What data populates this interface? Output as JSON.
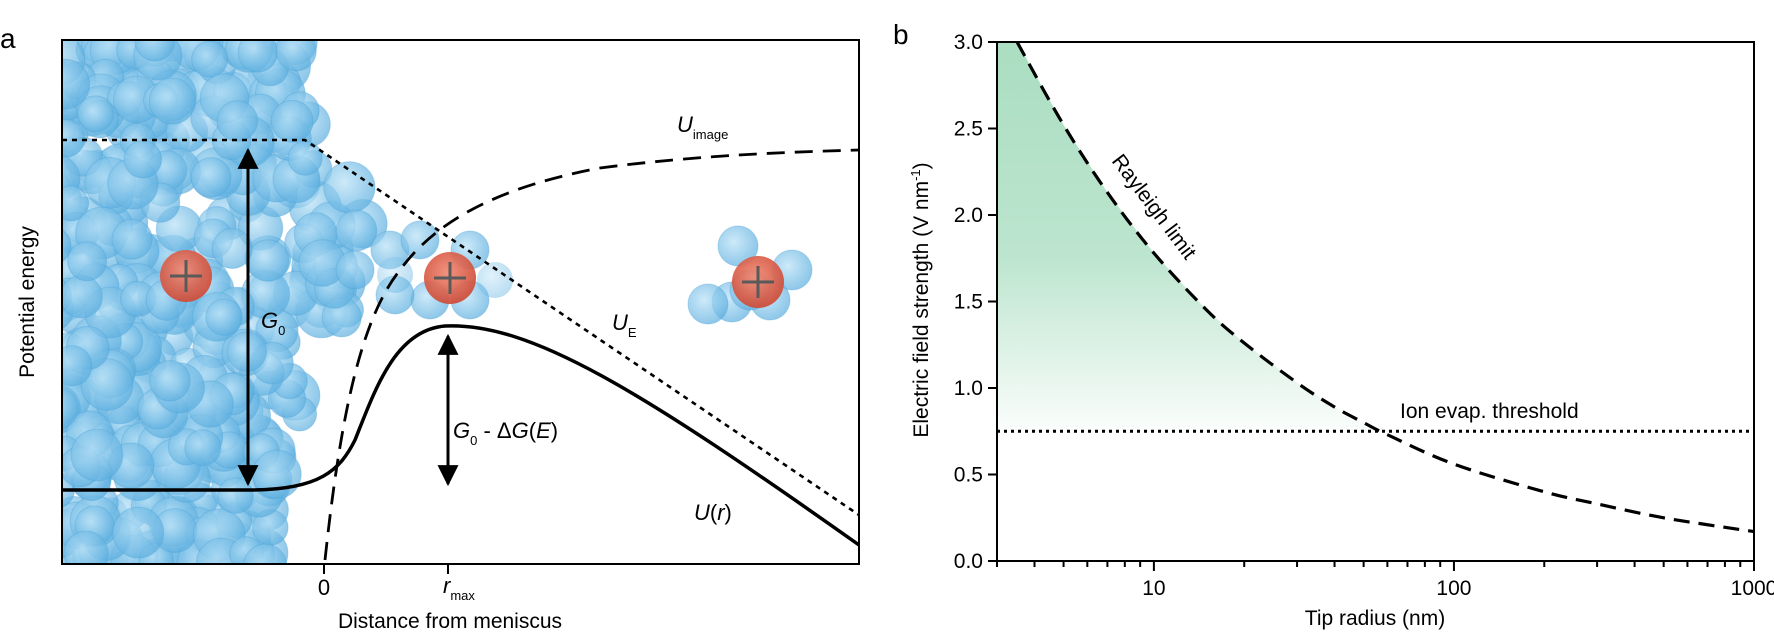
{
  "panel_a": {
    "label": "a",
    "ylabel": "Potential energy",
    "xlabel": "Distance from meniscus",
    "x_tick_0": "0",
    "r_max": {
      "main": "r",
      "sub": "max"
    },
    "u_image": {
      "main": "U",
      "sub": "image"
    },
    "u_e": {
      "main": "U",
      "sub": "E"
    },
    "g0": {
      "main": "G",
      "sub": "0"
    },
    "g0_minus": {
      "g": "G",
      "sub": "0",
      "rest": " - Δ",
      "g2": "G",
      "paren_open": "(",
      "e": "E",
      "paren_close": ")"
    },
    "u_r": {
      "u": "U",
      "open": "(",
      "r": "r",
      "close": ")"
    },
    "solvent_color": "#8ccbef",
    "ion_color": "#e0604a"
  },
  "panel_b": {
    "label": "b",
    "threshold_label": "Ion evap. threshold",
    "rayleigh_label": "Rayleigh limit",
    "ylabel_main": "Electric field strength (V nm",
    "ylabel_sup": "-1",
    "ylabel_close": ")",
    "shade_color": "#a6dcbe"
  },
  "chart_data": {
    "type": "line",
    "xlabel": "Tip radius (nm)",
    "ylabel": "Electric field strength (V nm-1)",
    "xscale": "log",
    "xlim": [
      3,
      1000
    ],
    "ylim": [
      0.0,
      3.0
    ],
    "x_ticks": [
      10,
      100,
      1000
    ],
    "x_tick_labels": [
      "10",
      "100",
      "1000"
    ],
    "y_ticks": [
      0.0,
      0.5,
      1.0,
      1.5,
      2.0,
      2.5,
      3.0
    ],
    "y_tick_labels": [
      "0.0",
      "0.5",
      "1.0",
      "1.5",
      "2.0",
      "2.5",
      "3.0"
    ],
    "grid": false,
    "series": [
      {
        "name": "Rayleigh limit",
        "style": "dashed",
        "x": [
          3.5,
          5,
          7,
          10,
          15,
          20,
          30,
          40,
          50,
          60,
          100,
          200,
          300,
          500,
          1000
        ],
        "y": [
          3.0,
          2.52,
          2.13,
          1.78,
          1.45,
          1.26,
          1.03,
          0.89,
          0.8,
          0.73,
          0.56,
          0.4,
          0.33,
          0.25,
          0.17
        ]
      },
      {
        "name": "Ion evap. threshold",
        "style": "dotted",
        "x": [
          3,
          1000
        ],
        "y": [
          0.75,
          0.75
        ]
      }
    ]
  }
}
